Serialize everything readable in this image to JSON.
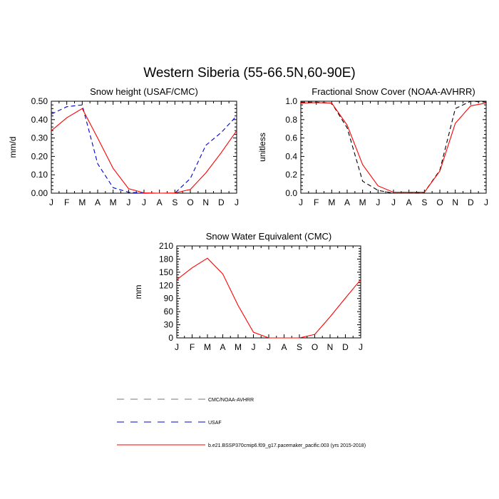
{
  "figure": {
    "title": "Western Siberia (55-66.5N,60-90E)"
  },
  "colors": {
    "model": "#ff0000",
    "usaf": "#0000cc",
    "obs": "#000000",
    "axis": "#000000"
  },
  "chart_data": [
    {
      "type": "line",
      "title": "Snow height (USAF/CMC)",
      "xlabel": "",
      "ylabel": "mm/d",
      "categories": [
        "J",
        "F",
        "M",
        "A",
        "M",
        "J",
        "J",
        "A",
        "S",
        "O",
        "N",
        "D",
        "J"
      ],
      "xlim": [
        0,
        12
      ],
      "ylim": [
        0,
        0.5
      ],
      "yticks": [
        0,
        0.1,
        0.2,
        0.3,
        0.4,
        0.5
      ],
      "ytick_labels": [
        "0.00",
        "0.10",
        "0.20",
        "0.30",
        "0.40",
        "0.50"
      ],
      "grid": false,
      "series": [
        {
          "key": "obs",
          "style": "dashed",
          "color": "#000000",
          "values": [
            0,
            0,
            0,
            0,
            0,
            0,
            0,
            0,
            0,
            0,
            0,
            0,
            0
          ]
        },
        {
          "key": "usaf",
          "style": "dashed",
          "color": "#0000cc",
          "values": [
            0.43,
            0.47,
            0.48,
            0.16,
            0.03,
            0.005,
            0,
            0,
            0,
            0.08,
            0.26,
            0.33,
            0.42
          ]
        },
        {
          "key": "model",
          "style": "solid",
          "color": "#ff0000",
          "values": [
            0.34,
            0.41,
            0.46,
            0.3,
            0.135,
            0.025,
            0.002,
            0,
            0.001,
            0.02,
            0.11,
            0.22,
            0.34
          ]
        }
      ]
    },
    {
      "type": "line",
      "title": "Fractional Snow Cover (NOAA-AVHRR)",
      "xlabel": "",
      "ylabel": "unitless",
      "categories": [
        "J",
        "F",
        "M",
        "A",
        "M",
        "J",
        "J",
        "A",
        "S",
        "O",
        "N",
        "D",
        "J"
      ],
      "xlim": [
        0,
        12
      ],
      "ylim": [
        0,
        1.0
      ],
      "yticks": [
        0,
        0.2,
        0.4,
        0.6,
        0.8,
        1.0
      ],
      "ytick_labels": [
        "0.0",
        "0.2",
        "0.4",
        "0.6",
        "0.8",
        "1.0"
      ],
      "grid": false,
      "series": [
        {
          "key": "obs",
          "style": "dashed",
          "color": "#000000",
          "values": [
            0.99,
            0.99,
            0.98,
            0.71,
            0.13,
            0.03,
            0,
            0,
            0.01,
            0.25,
            0.92,
            1.0,
            0.99
          ]
        },
        {
          "key": "model",
          "style": "solid",
          "color": "#ff0000",
          "values": [
            0.98,
            0.985,
            0.98,
            0.74,
            0.31,
            0.08,
            0.01,
            0.01,
            0.01,
            0.24,
            0.76,
            0.95,
            0.98
          ]
        }
      ]
    },
    {
      "type": "line",
      "title": "Snow Water Equivalent (CMC)",
      "xlabel": "",
      "ylabel": "mm",
      "categories": [
        "J",
        "F",
        "M",
        "A",
        "M",
        "J",
        "J",
        "A",
        "S",
        "O",
        "N",
        "D",
        "J"
      ],
      "xlim": [
        0,
        12
      ],
      "ylim": [
        0,
        210
      ],
      "yticks": [
        0,
        30,
        60,
        90,
        120,
        150,
        180,
        210
      ],
      "ytick_labels": [
        "0",
        "30",
        "60",
        "90",
        "120",
        "150",
        "180",
        "210"
      ],
      "grid": false,
      "series": [
        {
          "key": "obs",
          "style": "dashed",
          "color": "#000000",
          "values": [
            0,
            0,
            0,
            0,
            0,
            0,
            0,
            0,
            0,
            0,
            0,
            0,
            0
          ]
        },
        {
          "key": "model",
          "style": "solid",
          "color": "#ff0000",
          "values": [
            133,
            160,
            182,
            146,
            74,
            13,
            0,
            0,
            0,
            8,
            48,
            91,
            133
          ]
        }
      ]
    }
  ],
  "legend": {
    "position": "bottom",
    "items": [
      {
        "key": "obs",
        "label": "CMC/NOAA-AVHRR",
        "style": "dashed",
        "color": "#000000"
      },
      {
        "key": "usaf",
        "label": "USAF",
        "style": "dashed",
        "color": "#0000cc"
      },
      {
        "key": "model",
        "label": "b.e21.BSSP370cmip6.f09_g17.pacemaker_pacific.003 (yrs 2015-2018)",
        "style": "solid",
        "color": "#ff0000"
      }
    ]
  }
}
